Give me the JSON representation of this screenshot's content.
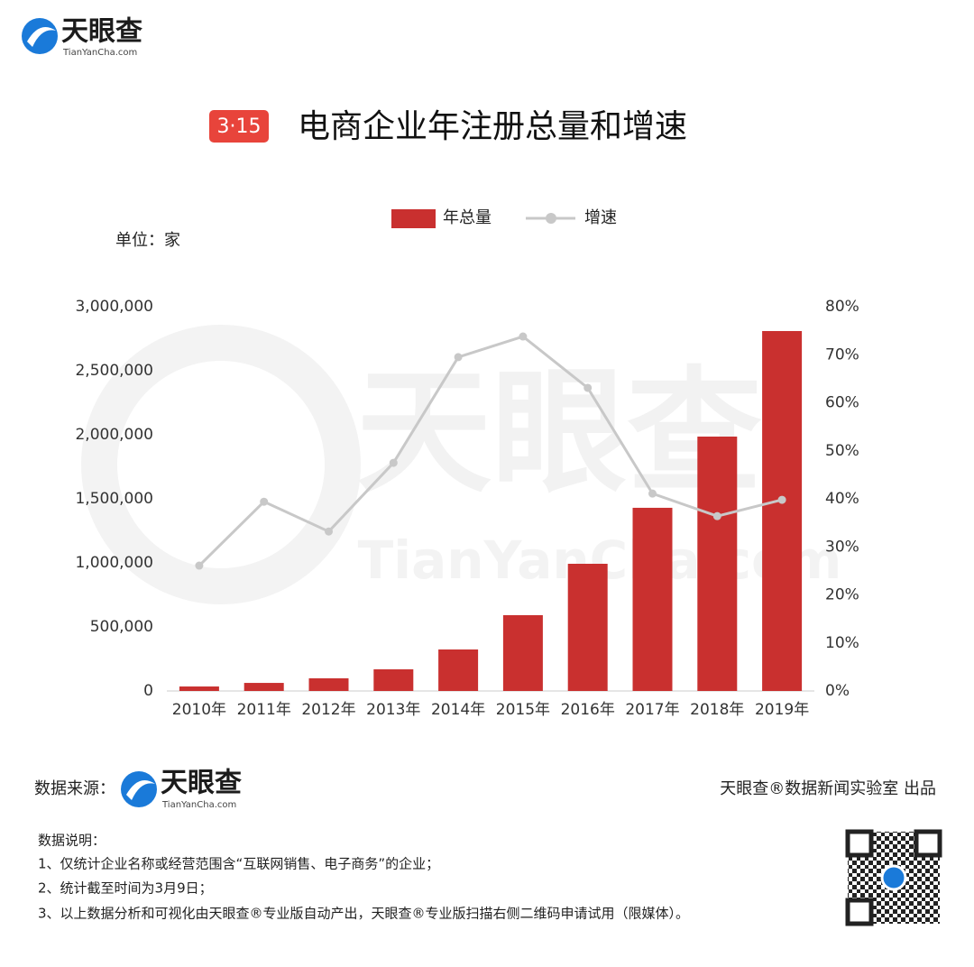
{
  "header": {
    "logo": "天眼查",
    "logo_sub": "TianYanCha.com",
    "badge": "3·15",
    "unit": "单位：家"
  },
  "watermark": {
    "main": "天眼查",
    "sub": "TianYanCha.com"
  },
  "chart_data": {
    "type": "bar",
    "title": "电商企业年注册总量和增速",
    "categories": [
      "2010年",
      "2011年",
      "2012年",
      "2013年",
      "2014年",
      "2015年",
      "2016年",
      "2017年",
      "2018年",
      "2019年"
    ],
    "series": [
      {
        "name": "年总量",
        "type": "bar",
        "color": "#c9302f",
        "values": [
          35000,
          63000,
          99000,
          169000,
          324000,
          592000,
          993000,
          1430000,
          1986000,
          2810000
        ]
      },
      {
        "name": "增速",
        "type": "line",
        "axis": "y2",
        "color": "#c8c8c8",
        "values": [
          26.1,
          39.4,
          33.2,
          47.5,
          69.5,
          73.8,
          63.1,
          41.1,
          36.4,
          39.8
        ]
      }
    ],
    "ylim": [
      0,
      3000000
    ],
    "yticks": [
      0,
      {
        "value": 500000,
        "label": "500,000"
      },
      {
        "value": 1000000,
        "label": "1,000,000"
      },
      {
        "value": 1500000,
        "label": "1,500,000"
      },
      {
        "value": 2000000,
        "label": "2,000,000"
      },
      {
        "value": 2500000,
        "label": "2,500,000"
      },
      {
        "value": 3000000,
        "label": "3,000,000"
      }
    ],
    "y2lim": [
      0,
      80
    ],
    "y2ticks": [
      {
        "value": 0,
        "label": "0%"
      },
      {
        "value": 10,
        "label": "10%"
      },
      {
        "value": 20,
        "label": "20%"
      },
      {
        "value": 30,
        "label": "30%"
      },
      {
        "value": 40,
        "label": "40%"
      },
      {
        "value": 50,
        "label": "50%"
      },
      {
        "value": 60,
        "label": "60%"
      },
      {
        "value": 70,
        "label": "70%"
      },
      {
        "value": 80,
        "label": "80%"
      }
    ],
    "grid": false,
    "legend": "top"
  },
  "footer": {
    "source_label": "数据来源：",
    "credit": "天眼查®数据新闻实验室 出品",
    "notes_title": "数据说明：",
    "notes": [
      "1、仅统计企业名称或经营范围含“互联网销售、电子商务”的企业；",
      "2、统计截至时间为3月9日；",
      "3、以上数据分析和可视化由天眼查®专业版自动产出，天眼查®专业版扫描右侧二维码申请试用（限媒体）。"
    ]
  }
}
